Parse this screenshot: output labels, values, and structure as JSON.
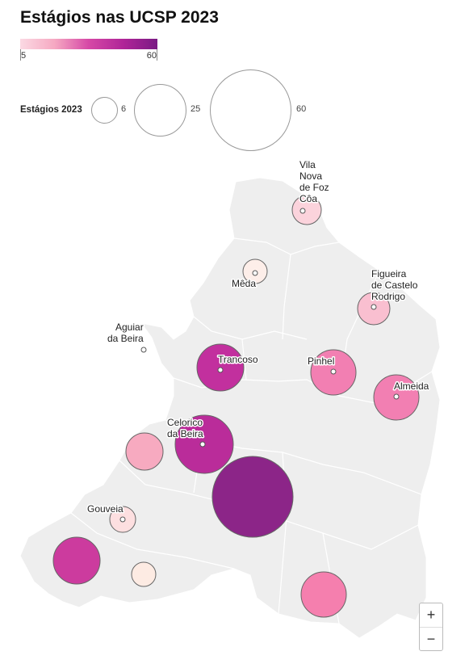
{
  "title": "Estágios nas UCSP 2023",
  "color_scale": {
    "min": "5",
    "max": "60",
    "colors": [
      "#fbd9e3",
      "#f6a9c2",
      "#d648a6",
      "#b02598",
      "#7a1a84"
    ]
  },
  "size_legend": {
    "title": "Estágios 2023",
    "items": [
      {
        "value": 6,
        "label": "6"
      },
      {
        "value": 25,
        "label": "25"
      },
      {
        "value": 60,
        "label": "60"
      }
    ]
  },
  "map_background": "#eeeeee",
  "places": [
    {
      "name": "Vila\nNova\nde Foz\nCôa",
      "value": 8,
      "color": "#fbd3dc"
    },
    {
      "name": "Mêda",
      "value": 5,
      "color": "#fdeee9"
    },
    {
      "name": "Figueira\nde Castelo\nRodrigo",
      "value": 10,
      "color": "#f9bfd0"
    },
    {
      "name": "Aguiar\nda Beira",
      "value": null,
      "color": null
    },
    {
      "name": "Trancoso",
      "value": 20,
      "color": "#c2309e"
    },
    {
      "name": "Pinhel",
      "value": 18,
      "color": "#f27fb2"
    },
    {
      "name": "Almeida",
      "value": 19,
      "color": "#f27fb2"
    },
    {
      "name": "Celorico\nda Beira",
      "value": 30,
      "color": "#ba2c9a"
    },
    {
      "name": "",
      "value": 12,
      "color": "#f7aac0"
    },
    {
      "name": "",
      "value": 60,
      "color": "#8c2588"
    },
    {
      "name": "Gouveia",
      "value": 6,
      "color": "#fddfe0"
    },
    {
      "name": "",
      "value": 20,
      "color": "#cc3b9e"
    },
    {
      "name": "",
      "value": 5,
      "color": "#fdebe3"
    },
    {
      "name": "",
      "value": 19,
      "color": "#f57fae"
    }
  ],
  "zoom": {
    "in": "+",
    "out": "−"
  }
}
